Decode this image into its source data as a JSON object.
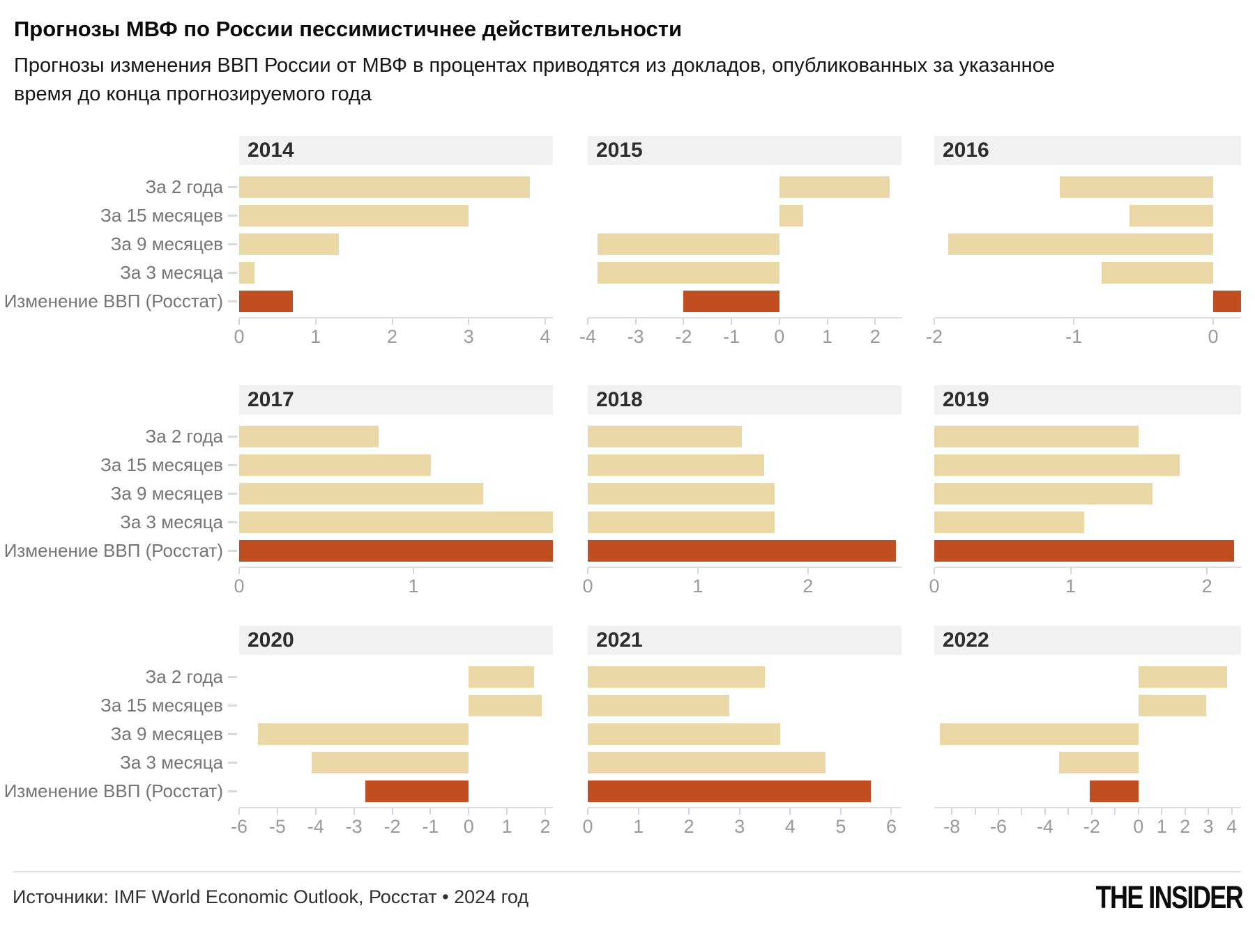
{
  "header": {
    "title": "Прогнозы МВФ по России пессимистичнее действительности",
    "subtitle": "Прогнозы изменения ВВП России от МВФ в процентах приводятся из докладов, опубликованных за указанное время до конца прогнозируемого года"
  },
  "colors": {
    "forecast_bar": "#ead9a6",
    "actual_bar": "#c04e20",
    "header_band": "#f1f1f1",
    "baseline": "#dedede",
    "axis_label": "#9a9a9a",
    "row_label": "#757575"
  },
  "chart_data": {
    "type": "bar",
    "orientation": "horizontal",
    "grid": false,
    "legend": "none",
    "categories": [
      "За 2 года",
      "За 15 месяцев",
      "За 9 месяцев",
      "За 3 месяца",
      "Изменение ВВП (Росстат)"
    ],
    "actual_row_index": 4,
    "panels": [
      {
        "year": "2014",
        "values": [
          3.8,
          3.0,
          1.3,
          0.2,
          0.7
        ],
        "xlim": [
          0,
          4.1
        ],
        "ticks": [
          0,
          1,
          2,
          3,
          4
        ]
      },
      {
        "year": "2015",
        "values": [
          2.3,
          0.5,
          -3.8,
          -3.8,
          -2.0
        ],
        "xlim": [
          -4,
          2.55
        ],
        "ticks": [
          -4,
          -3,
          -2,
          -1,
          0,
          1,
          2
        ]
      },
      {
        "year": "2016",
        "values": [
          -1.1,
          -0.6,
          -1.9,
          -0.8,
          0.2
        ],
        "xlim": [
          -2,
          0.2
        ],
        "ticks": [
          -2,
          -1,
          0
        ]
      },
      {
        "year": "2017",
        "values": [
          0.8,
          1.1,
          1.4,
          1.8,
          1.8
        ],
        "xlim": [
          0,
          1.8
        ],
        "ticks": [
          0,
          1
        ]
      },
      {
        "year": "2018",
        "values": [
          1.4,
          1.6,
          1.7,
          1.7,
          2.8
        ],
        "xlim": [
          0,
          2.85
        ],
        "ticks": [
          0,
          1,
          2
        ]
      },
      {
        "year": "2019",
        "values": [
          1.5,
          1.8,
          1.6,
          1.1,
          2.2
        ],
        "xlim": [
          0,
          2.25
        ],
        "ticks": [
          0,
          1,
          2
        ]
      },
      {
        "year": "2020",
        "values": [
          1.7,
          1.9,
          -5.5,
          -4.1,
          -2.7
        ],
        "xlim": [
          -6,
          2.2
        ],
        "ticks": [
          -6,
          -5,
          -4,
          -3,
          -2,
          -1,
          0,
          1,
          2
        ]
      },
      {
        "year": "2021",
        "values": [
          3.5,
          2.8,
          3.8,
          4.7,
          5.6
        ],
        "xlim": [
          0,
          6.2
        ],
        "ticks": [
          0,
          1,
          2,
          3,
          4,
          5,
          6
        ]
      },
      {
        "year": "2022",
        "values": [
          3.8,
          2.9,
          -8.5,
          -3.4,
          -2.1
        ],
        "xlim": [
          -8.75,
          4.4
        ],
        "ticks": [
          -8,
          -6,
          -4,
          -2,
          0,
          1,
          2,
          3,
          4
        ],
        "tick_marks": [
          -8,
          -7,
          -6,
          -5,
          -4,
          -3,
          -2,
          -1,
          0,
          1,
          2,
          3,
          4
        ]
      }
    ]
  },
  "footer": {
    "source": "Источники: IMF World Economic Outlook, Росстат • 2024 год",
    "logo": "THE INSIDER"
  }
}
